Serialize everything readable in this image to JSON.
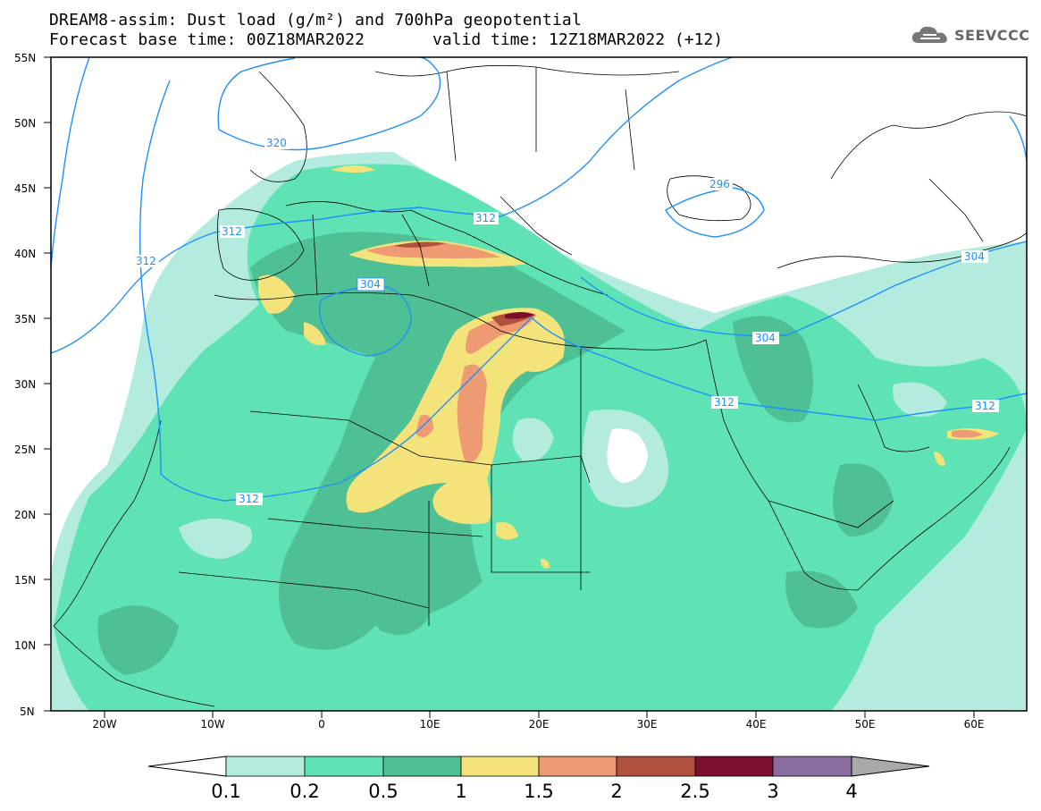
{
  "header": {
    "title": "DREAM8-assim: Dust load (g/m²) and 700hPa geopotential",
    "base_time": "Forecast base time: 00Z18MAR2022",
    "valid_time": "valid time: 12Z18MAR2022 (+12)"
  },
  "logo": {
    "text": "SEEVCCC",
    "icon": "cloud-icon"
  },
  "map": {
    "lat_labels": [
      "55N",
      "50N",
      "45N",
      "40N",
      "35N",
      "30N",
      "25N",
      "20N",
      "15N",
      "10N",
      "5N"
    ],
    "lon_labels": [
      "20W",
      "10W",
      "0",
      "10E",
      "20E",
      "30E",
      "40E",
      "50E",
      "60E"
    ],
    "contour_labels": [
      "320",
      "296",
      "312",
      "312",
      "312",
      "304",
      "304",
      "304",
      "312",
      "312",
      "312"
    ],
    "contour_color": "#1e90ff"
  },
  "colorbar": {
    "labels": [
      "0.1",
      "0.2",
      "0.5",
      "1",
      "1.5",
      "2",
      "2.5",
      "3",
      "4"
    ],
    "colors": [
      "#b3ecdf",
      "#5fe3b4",
      "#4fbf94",
      "#f3e37a",
      "#ee9a73",
      "#b0503f",
      "#7b0f2d",
      "#8a6da0",
      "#a9a9a9"
    ]
  }
}
